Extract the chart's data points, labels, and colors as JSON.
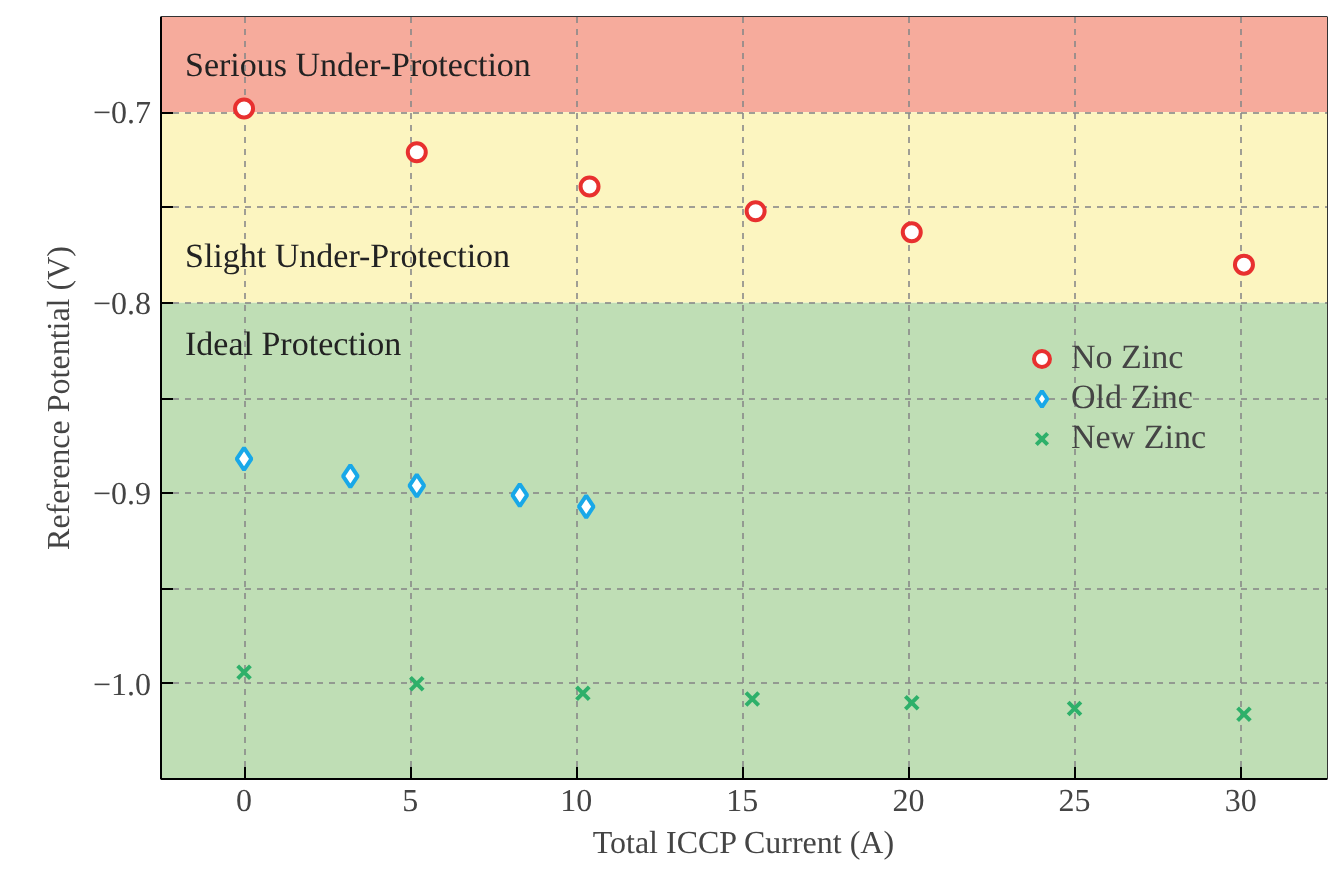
{
  "chart_data": {
    "type": "scatter",
    "xlabel": "Total ICCP Current (A)",
    "ylabel": "Reference Potential (V)",
    "xlim": [
      -2.5,
      32.6
    ],
    "ylim": [
      -1.05,
      -0.65
    ],
    "xticks": [
      0,
      5,
      10,
      15,
      20,
      25,
      30
    ],
    "yticks": [
      {
        "value": -1.05,
        "label": null
      },
      {
        "value": -1.0,
        "label": "−1.0"
      },
      {
        "value": -0.95,
        "label": null
      },
      {
        "value": -0.9,
        "label": "−0.9"
      },
      {
        "value": -0.85,
        "label": null
      },
      {
        "value": -0.8,
        "label": "−0.8"
      },
      {
        "value": -0.75,
        "label": null
      },
      {
        "value": -0.7,
        "label": "−0.7"
      }
    ],
    "grid": true,
    "legend": "right",
    "bands": [
      {
        "axis": "y",
        "from": -0.7,
        "to": -0.65,
        "label": "Serious Under-Protection",
        "color": "#f6ab9c"
      },
      {
        "axis": "y",
        "from": -0.8,
        "to": -0.7,
        "label": "Slight Under-Protection",
        "color": "#fcf5c0"
      },
      {
        "axis": "y",
        "from": -1.05,
        "to": -0.8,
        "label": "Ideal Protection",
        "color": "#bfdeb5"
      }
    ],
    "series": [
      {
        "name": "No Zinc",
        "color": "#e8302f",
        "marker": "circle",
        "x": [
          0,
          5.2,
          10.4,
          15.4,
          20.1,
          30.1
        ],
        "values": [
          -0.698,
          -0.721,
          -0.739,
          -0.752,
          -0.763,
          -0.78
        ]
      },
      {
        "name": "Old Zinc",
        "color": "#18a8e8",
        "marker": "diamond",
        "x": [
          0,
          3.2,
          5.2,
          8.3,
          10.3
        ],
        "values": [
          -0.882,
          -0.891,
          -0.896,
          -0.901,
          -0.907
        ]
      },
      {
        "name": "New Zinc",
        "color": "#2eb06a",
        "marker": "cross",
        "x": [
          0,
          5.2,
          10.2,
          15.3,
          20.1,
          25.0,
          30.1
        ],
        "values": [
          -0.994,
          -1.0,
          -1.005,
          -1.008,
          -1.01,
          -1.013,
          -1.016
        ]
      }
    ]
  }
}
